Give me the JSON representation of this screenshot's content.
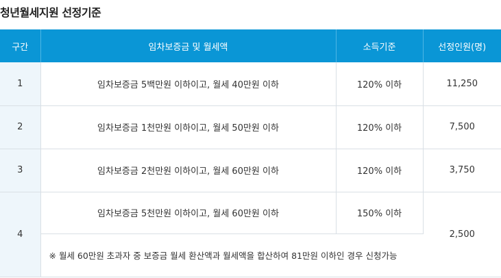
{
  "title": "청년월세지원 선정기준",
  "table": {
    "headers": [
      "구간",
      "임차보증금 및 월세액",
      "소득기준",
      "선정인원(명)"
    ],
    "rows": [
      {
        "section": "1",
        "condition": "임차보증금 5백만원 이하이고, 월세 40만원 이하",
        "income": "120% 이하",
        "count": "11,250"
      },
      {
        "section": "2",
        "condition": "임차보증금 1천만원 이하이고, 월세 50만원 이하",
        "income": "120% 이하",
        "count": "7,500"
      },
      {
        "section": "3",
        "condition": "임차보증금 2천만원 이하이고, 월세 60만원 이하",
        "income": "120% 이하",
        "count": "3,750"
      },
      {
        "section": "4",
        "condition": "임차보증금 5천만원 이하이고, 월세 60만원 이하",
        "income": "150% 이하",
        "count": "2,500",
        "note": "※ 월세 60만원 초과자 중 보증금 월세 환산액과 월세액을 합산하여 81만원 이하인 경우 신청가능"
      }
    ]
  }
}
